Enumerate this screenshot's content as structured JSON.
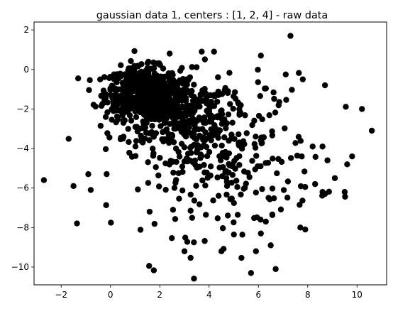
{
  "chart_data": {
    "type": "scatter",
    "title": "gaussian data 1, centers : [1, 2, 4] - raw data",
    "xlabel": "",
    "ylabel": "",
    "xlim": [
      -3.1,
      11.2
    ],
    "ylim": [
      -10.9,
      2.4
    ],
    "grid": false,
    "xticks": [
      -2,
      0,
      2,
      4,
      6,
      8,
      10
    ],
    "yticks": [
      2,
      0,
      -2,
      -4,
      -6,
      -8,
      -10
    ],
    "tick_labels": {
      "x": [
        "−2",
        "0",
        "2",
        "4",
        "6",
        "8",
        "10"
      ],
      "y": [
        "2",
        "0",
        "−2",
        "−4",
        "−6",
        "−8",
        "−10"
      ]
    },
    "series": [
      {
        "color": "#000000",
        "marker": "circle",
        "clusters": [
          {
            "center": [
              1.3,
              -1.2
            ],
            "spread": [
              0.75,
              0.65
            ],
            "count": 520
          },
          {
            "center": [
              2.6,
              -2.1
            ],
            "spread": [
              1.1,
              0.95
            ],
            "count": 300
          },
          {
            "center": [
              4.3,
              -4.3
            ],
            "spread": [
              2.0,
              2.0
            ],
            "count": 320
          }
        ],
        "points": [
          [
            -2.7,
            -5.6
          ],
          [
            -1.5,
            -5.9
          ],
          [
            -0.9,
            -5.3
          ],
          [
            -0.8,
            -6.1
          ],
          [
            10.2,
            -2.0
          ],
          [
            10.6,
            -3.1
          ],
          [
            9.8,
            -4.4
          ],
          [
            9.6,
            -4.8
          ],
          [
            9.5,
            -6.2
          ],
          [
            7.3,
            1.7
          ],
          [
            6.1,
            0.7
          ],
          [
            5.7,
            -10.3
          ],
          [
            6.7,
            -10.1
          ],
          [
            3.0,
            -9.2
          ],
          [
            4.5,
            -9.2
          ],
          [
            5.9,
            -9.2
          ],
          [
            6.5,
            -8.9
          ],
          [
            7.9,
            -8.1
          ],
          [
            7.7,
            -8.0
          ],
          [
            8.7,
            -0.8
          ],
          [
            7.8,
            -0.5
          ],
          [
            8.2,
            -3.9
          ],
          [
            8.6,
            -3.9
          ],
          [
            8.8,
            -4.6
          ],
          [
            9.1,
            -5.5
          ],
          [
            8.7,
            -6.3
          ],
          [
            8.3,
            -5.8
          ],
          [
            6.3,
            -7.7
          ],
          [
            6.1,
            -8.3
          ],
          [
            4.2,
            0.9
          ],
          [
            3.7,
            0.9
          ],
          [
            2.4,
            0.8
          ]
        ]
      }
    ]
  }
}
